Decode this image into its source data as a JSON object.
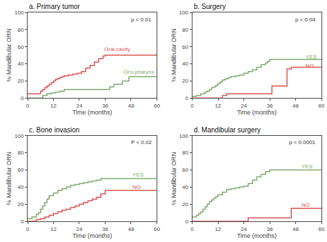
{
  "chart_data": [
    {
      "type": "step",
      "title": "a. Primary tumor",
      "xlabel": "Time (months)",
      "ylabel": "% Mandibular ORN",
      "series": [
        {
          "name": "Oral cavity",
          "color": "#d9534f",
          "x": [
            0,
            4,
            6,
            7,
            8,
            9,
            10,
            11,
            12,
            13,
            14,
            15,
            16,
            17,
            19,
            21,
            23,
            25,
            27,
            29,
            31,
            33,
            35,
            36,
            60
          ],
          "values": [
            5,
            5,
            8,
            10,
            12,
            14,
            16,
            18,
            20,
            22,
            23,
            24,
            25,
            26,
            27,
            28,
            29,
            31,
            35,
            38,
            42,
            46,
            49,
            50,
            50
          ]
        },
        {
          "name": "Oro-pharynx",
          "color": "#7faa6d",
          "x": [
            0,
            7,
            9,
            11,
            13,
            15,
            17,
            36,
            38,
            40,
            44,
            47,
            60
          ],
          "values": [
            0,
            3,
            5,
            6,
            7,
            8,
            10,
            10,
            13,
            16,
            20,
            25,
            25
          ]
        }
      ],
      "annotations": [
        {
          "text": "p < 0.01"
        },
        {
          "text": "Oral cavity",
          "x": 35,
          "y": 57,
          "color": "#d9534f"
        },
        {
          "text": "Oro-pharynx",
          "x": 44,
          "y": 30,
          "color": "#7faa6d"
        }
      ],
      "xlim": [
        0,
        60
      ],
      "ylim": [
        0,
        100
      ],
      "xticks": [
        0,
        12,
        24,
        36,
        48,
        60
      ],
      "yticks": [
        0,
        20,
        40,
        60,
        80,
        100
      ],
      "grid": false
    },
    {
      "type": "step",
      "title": "b. Surgery",
      "xlabel": "Time (months)",
      "ylabel": "% Mandibular ORN",
      "series": [
        {
          "name": "YES",
          "color": "#7faa6d",
          "x": [
            0,
            2,
            4,
            6,
            7,
            8,
            9,
            10,
            11,
            12,
            13,
            14,
            15,
            16,
            17,
            18,
            20,
            22,
            24,
            26,
            28,
            30,
            32,
            34,
            35,
            36,
            60
          ],
          "values": [
            2,
            3,
            5,
            7,
            8,
            10,
            12,
            13,
            15,
            17,
            19,
            21,
            22,
            23,
            24,
            25,
            26,
            27,
            29,
            31,
            33,
            36,
            39,
            41,
            43,
            45,
            45
          ]
        },
        {
          "name": "NO",
          "color": "#d9534f",
          "x": [
            0,
            14,
            16,
            35,
            37,
            44,
            46,
            60
          ],
          "values": [
            0,
            3,
            5,
            5,
            14,
            34,
            36,
            36
          ]
        }
      ],
      "annotations": [
        {
          "text": "p < 0.04"
        },
        {
          "text": "YES",
          "x": 52,
          "y": 48,
          "color": "#7faa6d"
        },
        {
          "text": "NO",
          "x": 52,
          "y": 38,
          "color": "#d9534f"
        }
      ],
      "xlim": [
        0,
        60
      ],
      "ylim": [
        0,
        100
      ],
      "xticks": [
        0,
        12,
        24,
        36,
        48,
        60
      ],
      "yticks": [
        0,
        20,
        40,
        60,
        80,
        100
      ],
      "grid": false
    },
    {
      "type": "step",
      "title": "c. Bone invasion",
      "xlabel": "Time (months)",
      "ylabel": "% Mandibular ORN",
      "series": [
        {
          "name": "YES",
          "color": "#7faa6d",
          "x": [
            0,
            2,
            4,
            5,
            6,
            7,
            8,
            9,
            10,
            12,
            14,
            16,
            18,
            20,
            22,
            24,
            26,
            28,
            30,
            32,
            34,
            35,
            60
          ],
          "values": [
            3,
            5,
            8,
            10,
            14,
            18,
            22,
            26,
            30,
            33,
            36,
            38,
            40,
            42,
            43,
            44,
            45,
            46,
            47,
            48,
            50,
            50,
            50
          ]
        },
        {
          "name": "NO",
          "color": "#d9534f",
          "x": [
            0,
            4,
            6,
            8,
            10,
            12,
            14,
            16,
            18,
            20,
            22,
            24,
            26,
            28,
            30,
            32,
            34,
            36,
            60
          ],
          "values": [
            0,
            2,
            3,
            5,
            7,
            9,
            11,
            13,
            14,
            16,
            18,
            20,
            22,
            24,
            26,
            28,
            32,
            36,
            36
          ]
        }
      ],
      "annotations": [
        {
          "text": "P < 0.02"
        },
        {
          "text": "YES",
          "x": 48,
          "y": 54,
          "color": "#7faa6d"
        },
        {
          "text": "NO",
          "x": 48,
          "y": 40,
          "color": "#d9534f"
        }
      ],
      "xlim": [
        0,
        60
      ],
      "ylim": [
        0,
        100
      ],
      "xticks": [
        0,
        12,
        24,
        36,
        48,
        60
      ],
      "yticks": [
        0,
        20,
        40,
        60,
        80,
        100
      ],
      "grid": false
    },
    {
      "type": "step",
      "title": "d. Mandibular surgery",
      "xlabel": "Time (months)",
      "ylabel": "% Mandibular ORN",
      "series": [
        {
          "name": "YES",
          "color": "#7faa6d",
          "x": [
            0,
            2,
            3,
            4,
            5,
            6,
            7,
            8,
            9,
            10,
            11,
            12,
            14,
            16,
            18,
            20,
            22,
            24,
            26,
            28,
            30,
            32,
            34,
            36,
            60
          ],
          "values": [
            5,
            7,
            9,
            11,
            14,
            17,
            20,
            23,
            25,
            27,
            29,
            31,
            34,
            37,
            38,
            39,
            40,
            41,
            44,
            48,
            52,
            55,
            58,
            60,
            60
          ]
        },
        {
          "name": "NO",
          "color": "#d9534f",
          "x": [
            0,
            26,
            44,
            46,
            60
          ],
          "values": [
            0,
            4,
            4,
            15,
            15
          ]
        }
      ],
      "annotations": [
        {
          "text": "p < 0.0001"
        },
        {
          "text": "YES",
          "x": 50,
          "y": 64,
          "color": "#7faa6d"
        },
        {
          "text": "NO",
          "x": 50,
          "y": 19,
          "color": "#d9534f"
        }
      ],
      "xlim": [
        0,
        60
      ],
      "ylim": [
        0,
        100
      ],
      "xticks": [
        0,
        12,
        24,
        36,
        48,
        60
      ],
      "yticks": [
        0,
        20,
        40,
        60,
        80,
        100
      ],
      "grid": false
    }
  ]
}
